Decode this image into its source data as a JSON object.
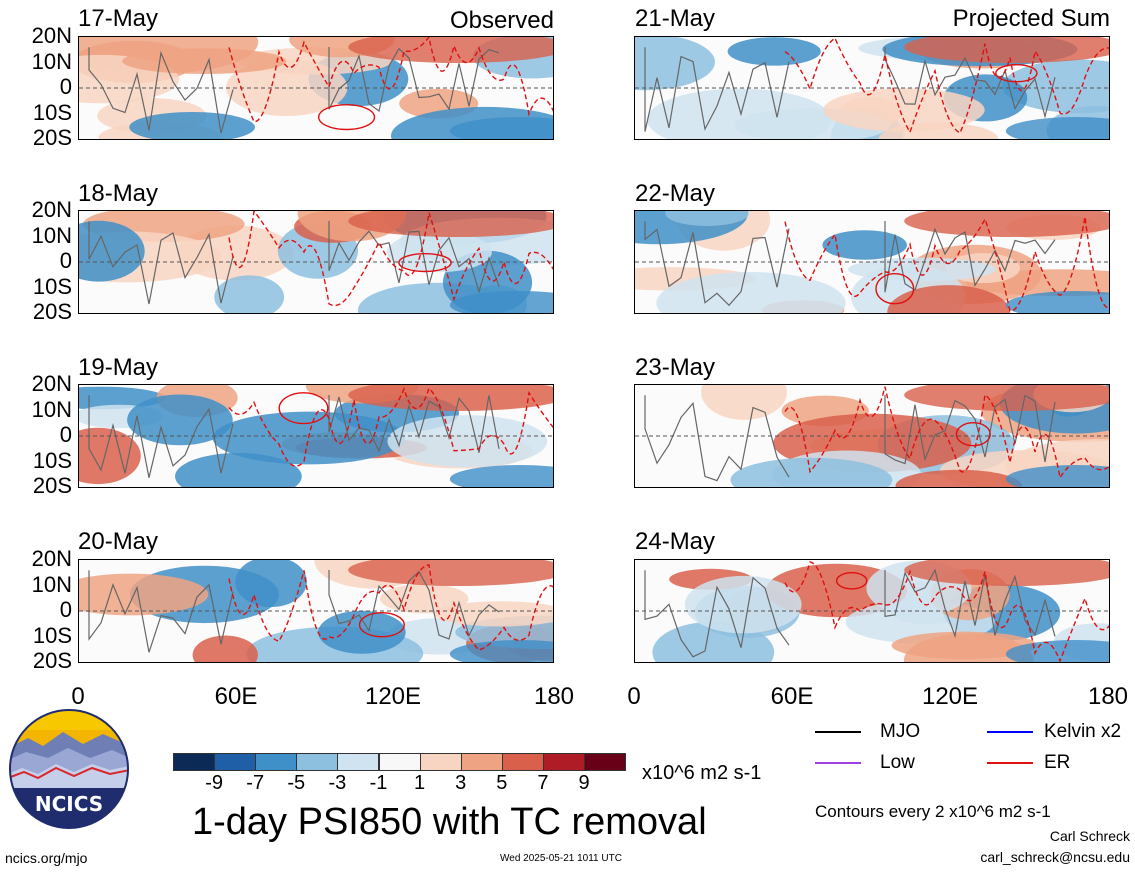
{
  "figure": {
    "title": "1-day PSI850 with TC removal",
    "left_header": "Observed",
    "right_header": "Projected Sum",
    "units": "x10^6 m2 s-1",
    "contour_note": "Contours every 2 x10^6 m2 s-1",
    "author": "Carl Schreck",
    "email": "carl_schreck@ncsu.edu",
    "site": "ncics.org/mjo",
    "timestamp": "Wed 2025-05-21 1011 UTC",
    "logo_text": "NCICS"
  },
  "chart_data": {
    "type": "heatmap",
    "panels": [
      {
        "date": "17-May",
        "column": "Observed"
      },
      {
        "date": "18-May",
        "column": "Observed"
      },
      {
        "date": "19-May",
        "column": "Observed"
      },
      {
        "date": "20-May",
        "column": "Observed"
      },
      {
        "date": "21-May",
        "column": "Projected Sum"
      },
      {
        "date": "22-May",
        "column": "Projected Sum"
      },
      {
        "date": "23-May",
        "column": "Projected Sum"
      },
      {
        "date": "24-May",
        "column": "Projected Sum"
      }
    ],
    "y_ticks": [
      "20N",
      "10N",
      "0",
      "10S",
      "20S"
    ],
    "x_ticks": [
      "0",
      "60E",
      "120E",
      "180"
    ],
    "xlim": [
      0,
      180
    ],
    "ylim": [
      -20,
      20
    ],
    "colorbar": {
      "ticks": [
        "-9",
        "-7",
        "-5",
        "-3",
        "-1",
        "1",
        "3",
        "5",
        "7",
        "9"
      ],
      "colors": [
        "#0b2a55",
        "#1f5fa8",
        "#3f8fc8",
        "#8dbfdf",
        "#cfe3f0",
        "#f8f8f8",
        "#f8d5c2",
        "#eea383",
        "#d9604b",
        "#b01c26",
        "#680018"
      ]
    },
    "legend": [
      {
        "label": "MJO",
        "color": "#000000"
      },
      {
        "label": "Kelvin x2",
        "color": "#0000ff"
      },
      {
        "label": "Low",
        "color": "#a040e0"
      },
      {
        "label": "ER",
        "color": "#e01010"
      }
    ]
  }
}
